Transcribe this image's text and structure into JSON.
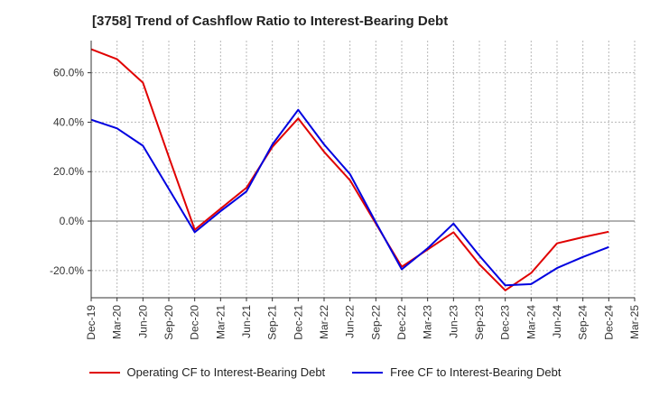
{
  "chart_data": {
    "type": "line",
    "title": "[3758]  Trend of Cashflow Ratio to Interest-Bearing Debt",
    "xlabel": "",
    "ylabel": "",
    "x": [
      "Dec-19",
      "Mar-20",
      "Jun-20",
      "Sep-20",
      "Dec-20",
      "Mar-21",
      "Jun-21",
      "Sep-21",
      "Dec-21",
      "Mar-22",
      "Jun-22",
      "Sep-22",
      "Dec-22",
      "Mar-23",
      "Jun-23",
      "Sep-23",
      "Dec-23",
      "Mar-24",
      "Jun-24",
      "Sep-24",
      "Dec-24",
      "Mar-25"
    ],
    "ylim": [
      -31,
      73
    ],
    "yticks": [
      -20,
      0,
      20,
      40,
      60
    ],
    "ytick_labels": [
      "-20.0%",
      "0.0%",
      "20.0%",
      "40.0%",
      "60.0%"
    ],
    "grid": true,
    "legend_position": "bottom",
    "series": [
      {
        "name": "Operating CF to Interest-Bearing Debt",
        "color": "#e00000",
        "values": [
          69.5,
          65.5,
          56,
          26,
          -3.5,
          5,
          13.5,
          30,
          41.5,
          28,
          16.5,
          -1,
          -18.5,
          -11.5,
          -4.5,
          -17.5,
          -28,
          -21,
          -9,
          -6.5,
          -4.3,
          null
        ]
      },
      {
        "name": "Free CF to Interest-Bearing Debt",
        "color": "#0000e0",
        "values": [
          41,
          37.5,
          30.5,
          13,
          -4.5,
          4,
          12,
          31,
          45,
          31,
          19,
          -0.5,
          -19.5,
          -11,
          -1,
          -14,
          -26,
          -25.5,
          -19,
          -14.5,
          -10.5,
          null
        ]
      }
    ]
  }
}
